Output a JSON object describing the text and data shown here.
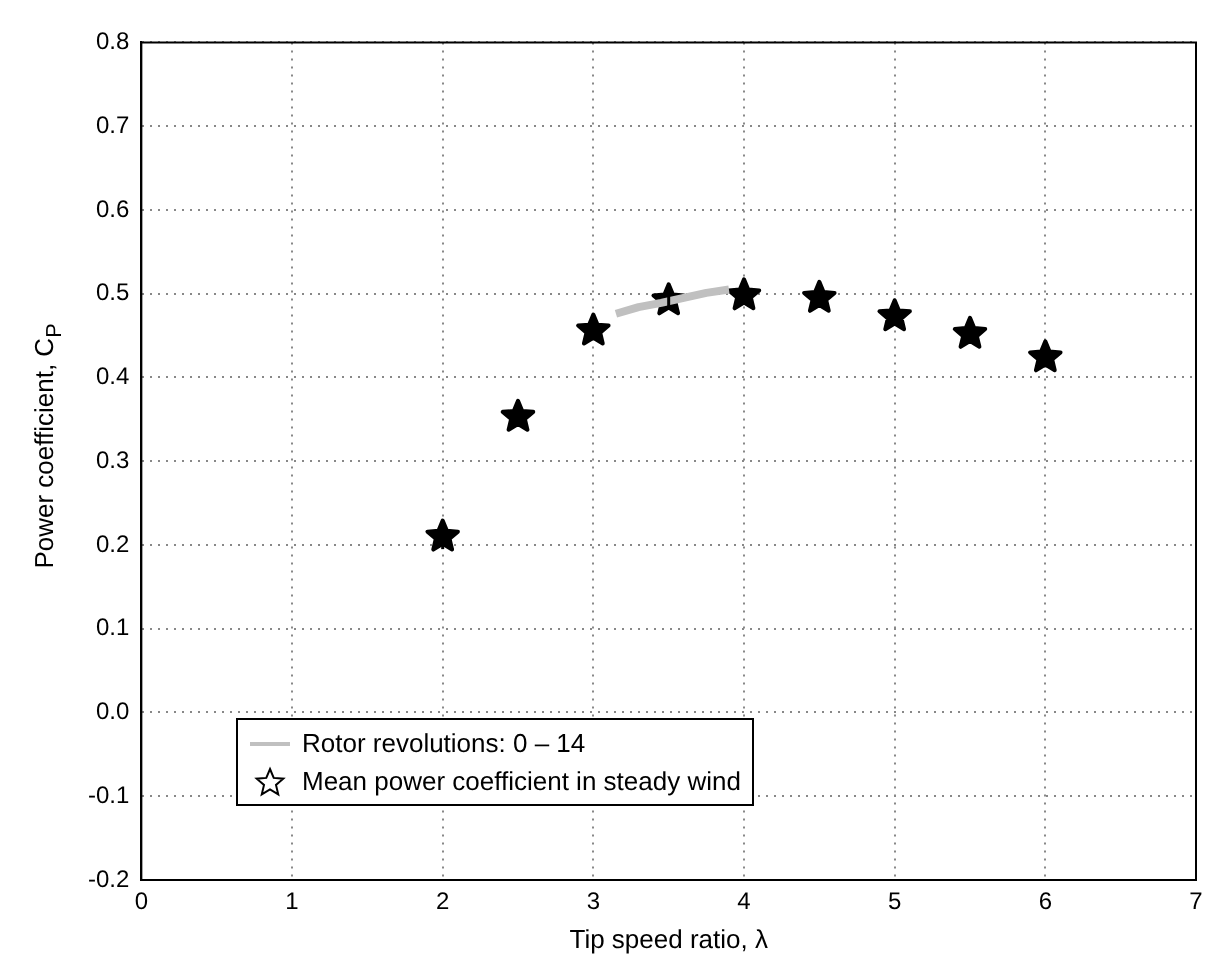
{
  "chart_data": {
    "type": "scatter",
    "xlabel": "Tip speed ratio, λ",
    "ylabel": "Power coefficient, C$_{P}$",
    "xlim": [
      0,
      7
    ],
    "xticks": [
      0,
      1,
      2,
      3,
      4,
      5,
      6,
      7
    ],
    "ylim": [
      -0.2,
      0.8
    ],
    "yticks": [
      -0.2,
      -0.1,
      {
        "value": 0,
        "label": "0.0"
      },
      0.1,
      0.2,
      0.3,
      0.4,
      0.5,
      0.6,
      0.7,
      0.8
    ],
    "grid": true,
    "legend": "bottom left",
    "series": [
      {
        "name": "Rotor revolutions: 0 – 14",
        "type": "line",
        "color": "#c0c0c0",
        "marker": "none",
        "line_style": "solid",
        "x": [
          3.15,
          3.3,
          3.45,
          3.6,
          3.75,
          3.9
        ],
        "values": [
          0.476,
          0.484,
          0.489,
          0.495,
          0.501,
          0.505
        ]
      },
      {
        "name": "Mean power coefficient in steady wind",
        "color": "#000000",
        "marker": "star",
        "x": [
          2,
          2.5,
          3,
          3.5,
          4,
          4.5,
          5,
          5.5,
          6
        ],
        "values": [
          0.21,
          0.353,
          0.456,
          0.492,
          0.498,
          0.495,
          0.473,
          0.452,
          0.424
        ],
        "errors": [
          0.015,
          0.008,
          0.008,
          0.008,
          0.008,
          0.008,
          0.01,
          0.01,
          0.012
        ]
      }
    ]
  }
}
